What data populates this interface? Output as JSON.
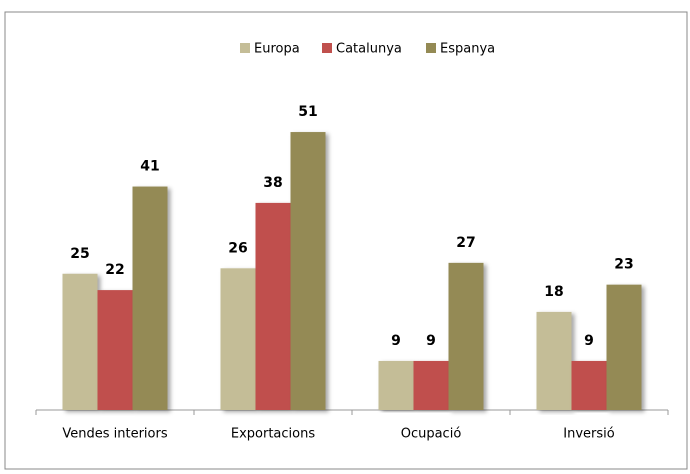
{
  "chart_data": {
    "type": "bar",
    "categories": [
      "Vendes interiors",
      "Exportacions",
      "Ocupació",
      "Inversió"
    ],
    "series": [
      {
        "name": "Europa",
        "color": "#c4bd97",
        "label_color": "#4f4a2a",
        "values": [
          25,
          26,
          9,
          18
        ]
      },
      {
        "name": "Catalunya",
        "color": "#c0504d",
        "label_color": "#632523",
        "values": [
          22,
          38,
          9,
          9
        ]
      },
      {
        "name": "Espanya",
        "color": "#948a54",
        "label_color": "#000000",
        "values": [
          41,
          51,
          27,
          23
        ]
      }
    ],
    "ylim": [
      0,
      60
    ],
    "legend": "top"
  }
}
